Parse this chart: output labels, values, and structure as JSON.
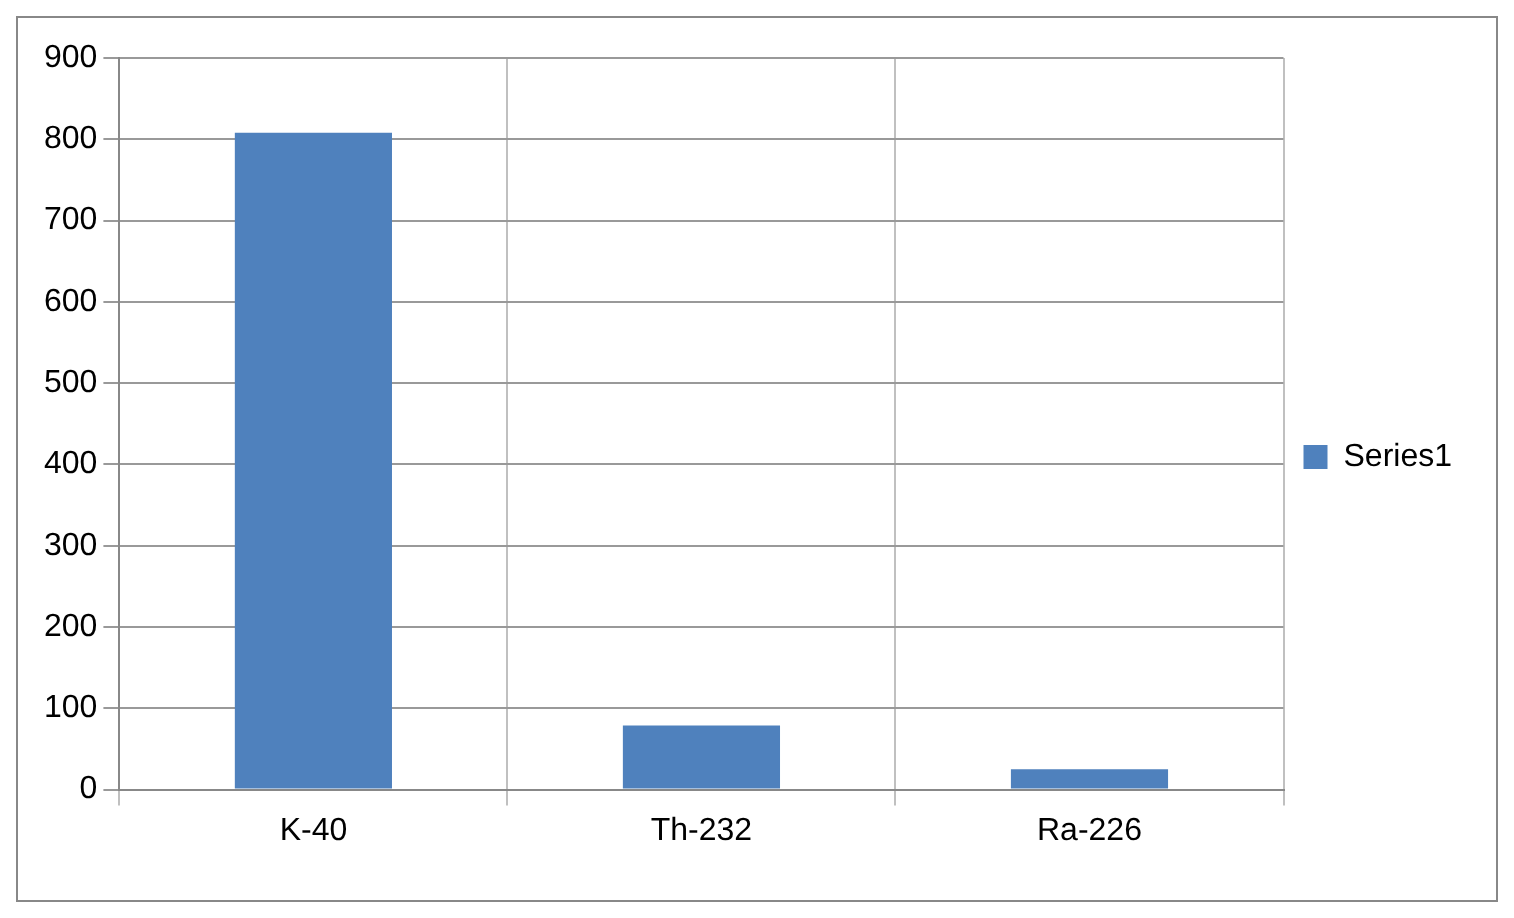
{
  "chart_data": {
    "type": "bar",
    "categories": [
      "K-40",
      "Th-232",
      "Ra-226"
    ],
    "series": [
      {
        "name": "Series1",
        "color": "#4f81bd",
        "values": [
          808,
          79,
          25
        ]
      }
    ],
    "ylim": [
      0,
      900
    ],
    "yticks": [
      0,
      100,
      200,
      300,
      400,
      500,
      600,
      700,
      800,
      900
    ],
    "grid": true,
    "legend": "right"
  }
}
